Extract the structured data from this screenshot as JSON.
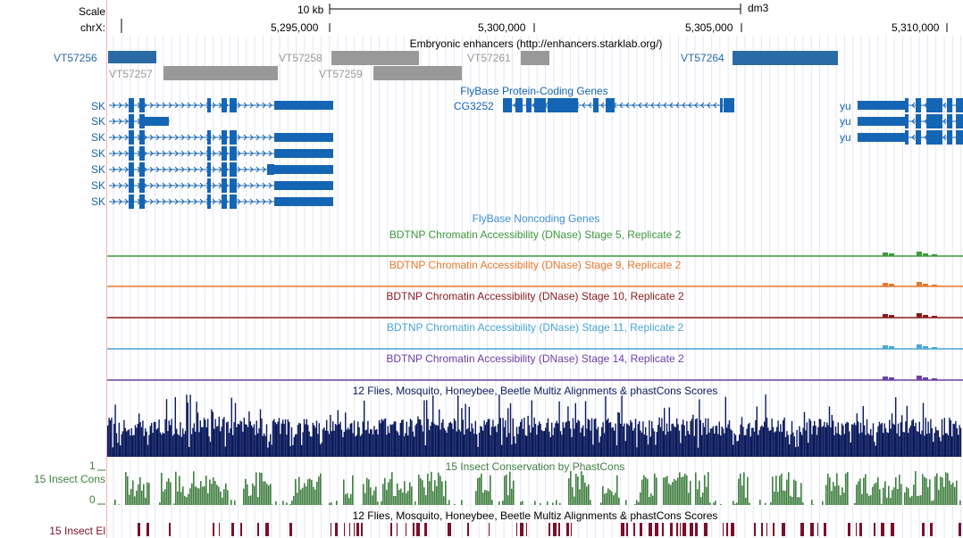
{
  "header": {
    "scale_label": "Scale",
    "chrom_label": "chrX:",
    "scale_bar_text": "10 kb",
    "assembly": "dm3",
    "ticks": [
      "5,295,000",
      "5,300,000",
      "5,305,000",
      "5,310,000"
    ]
  },
  "enhancers": {
    "title": "Embryonic enhancers (http://enhancers.starklab.org/)",
    "items": [
      {
        "name": "VT57256",
        "color": "#2a6aa6"
      },
      {
        "name": "VT57257",
        "color": "#999999"
      },
      {
        "name": "VT57258",
        "color": "#999999"
      },
      {
        "name": "VT57259",
        "color": "#999999"
      },
      {
        "name": "VT57261",
        "color": "#999999"
      },
      {
        "name": "VT57264",
        "color": "#2a6aa6"
      }
    ]
  },
  "genes": {
    "title": "FlyBase Protein-Coding Genes",
    "sk_labels": [
      "SK",
      "SK",
      "SK",
      "SK",
      "SK",
      "SK",
      "SK"
    ],
    "cg_label": "CG3252",
    "yu_labels": [
      "yu",
      "yu",
      "yu"
    ],
    "color": "#1565b5"
  },
  "noncoding": {
    "title": "FlyBase Noncoding Genes",
    "color": "#3f8fd6"
  },
  "dnase": [
    {
      "title": "BDTNP Chromatin Accessibility (DNase) Stage 5, Replicate 2",
      "color": "#3c9a3c"
    },
    {
      "title": "BDTNP Chromatin Accessibility (DNase) Stage 9, Replicate 2",
      "color": "#e8782b"
    },
    {
      "title": "BDTNP Chromatin Accessibility (DNase) Stage 10, Replicate 2",
      "color": "#8b1a1a"
    },
    {
      "title": "BDTNP Chromatin Accessibility (DNase) Stage 11, Replicate 2",
      "color": "#4aa6d6"
    },
    {
      "title": "BDTNP Chromatin Accessibility (DNase) Stage 14, Replicate 2",
      "color": "#6a3fa6"
    }
  ],
  "multiz": {
    "title": "12 Flies, Mosquito, Honeybee, Beetle Multiz Alignments & phastCons Scores",
    "color": "#0a1a5c"
  },
  "insect_cons": {
    "title": "15 Insect Conservation by PhastCons",
    "side_label": "15 Insect Cons",
    "y_max": "1",
    "y_min": "0",
    "color": "#3f7f3f"
  },
  "insect_el": {
    "title": "12 Flies, Mosquito, Honeybee, Beetle Multiz Alignments & phastCons Scores",
    "side_label": "15 Insect El",
    "color": "#7a0f2a"
  }
}
